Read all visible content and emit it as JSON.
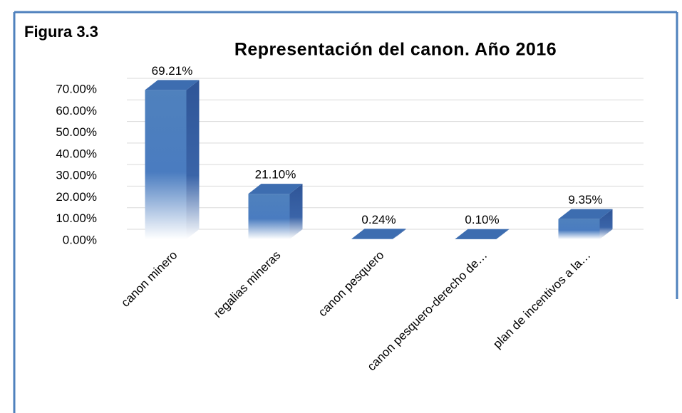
{
  "figure_label": "Figura 3.3",
  "chart_data": {
    "type": "bar3d",
    "title": "Representación del canon. Año 2016",
    "categories": [
      "canon minero",
      "regalias mineras",
      "canon pesquero",
      "canon pesquero-derecho de…",
      "plan de incentivos a la…"
    ],
    "values": [
      69.21,
      21.1,
      0.24,
      0.1,
      9.35
    ],
    "value_labels": [
      "69.21%",
      "21.10%",
      "0.24%",
      "0.10%",
      "9.35%"
    ],
    "color": "#4f81bd",
    "ylim": [
      0,
      70
    ],
    "yticks": [
      {
        "value": 0,
        "label": "0.00%"
      },
      {
        "value": 10,
        "label": "10.00%"
      },
      {
        "value": 20,
        "label": "20.00%"
      },
      {
        "value": 30,
        "label": "30.00%"
      },
      {
        "value": 40,
        "label": "40.00%"
      },
      {
        "value": 50,
        "label": "50.00%"
      },
      {
        "value": 60,
        "label": "60.00%"
      },
      {
        "value": 70,
        "label": "70.00%"
      }
    ],
    "grid": true
  }
}
